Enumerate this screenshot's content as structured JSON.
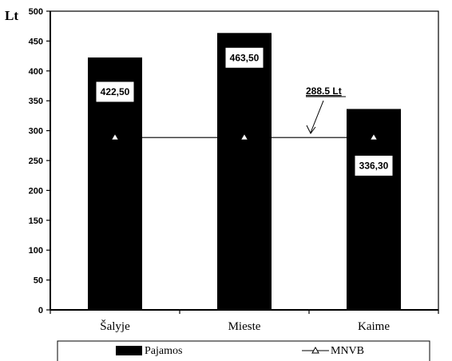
{
  "chart_data": {
    "type": "bar",
    "ylabel": "Lt",
    "ylim": [
      0,
      500
    ],
    "yticks": [
      0,
      50,
      100,
      150,
      200,
      250,
      300,
      350,
      400,
      450,
      500
    ],
    "categories": [
      "Šalyje",
      "Mieste",
      "Kaime"
    ],
    "series": [
      {
        "name": "Pajamos",
        "type": "bar",
        "values": [
          422.5,
          463.5,
          336.3
        ],
        "labels": [
          "422,50",
          "463,50",
          "336,30"
        ],
        "color": "#000000"
      },
      {
        "name": "MNVB",
        "type": "line",
        "values": [
          288.5,
          288.5,
          288.5
        ],
        "color": "#000000",
        "marker": "triangle-open"
      }
    ],
    "annotations": [
      {
        "text": "288.5 Lt",
        "points_to_value": 288.5
      }
    ],
    "grid": false,
    "legend": "bottom"
  }
}
